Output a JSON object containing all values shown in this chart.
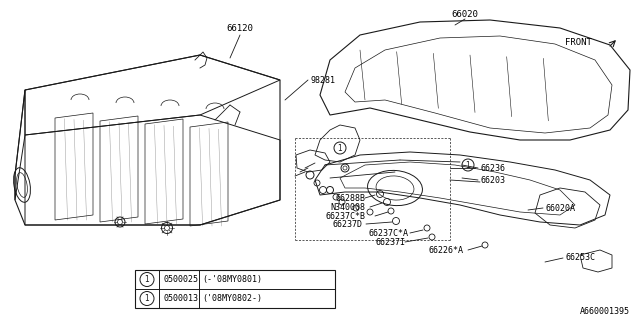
{
  "background_color": "#ffffff",
  "line_color": "#1a1a1a",
  "catalog_number": "A660001395",
  "legend_entries": [
    {
      "symbol": "1",
      "part": "0500025",
      "desc": "(-'08MY0801)"
    },
    {
      "symbol": "1",
      "part": "0500013",
      "desc": "('08MY0802-)"
    }
  ]
}
